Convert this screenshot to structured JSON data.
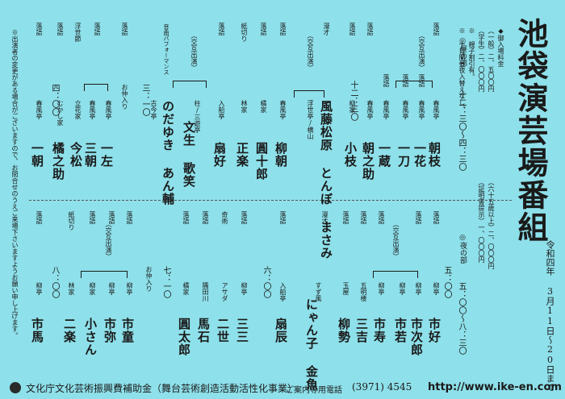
{
  "title": "池袋演芸場番組",
  "period": "令和四年 3月11日～20日まで",
  "admission": {
    "heading": "◆御入場料金",
    "lines": [
      "（一般）二、五〇〇円",
      "（学生）二、〇〇〇円",
      "（青物）二、〇〇〇円",
      "（六十五歳以上）二、〇〇〇円",
      "（小人）一、五〇〇円",
      "（証明書提示）一、〇〇〇円"
    ],
    "notes": [
      "※ 親子割引有。",
      "※ 十日間昼夜入替えなし。"
    ]
  },
  "left_note": "※出演者の変更がある場合がございますので、お問合せのうえご来場下さいますようお願い申し上げます。",
  "day": {
    "label": "◎昼の部",
    "time": "十二：三〇～四：三〇",
    "start": "十二：三〇",
    "intermission": "四：〇〇",
    "acts": [
      {
        "role": "落語",
        "house": "春風亭",
        "name": "朝枝"
      },
      {
        "role": "落語",
        "house": "春風亭",
        "name": "一花",
        "cross": "（交互出演）"
      },
      {
        "role": "落語",
        "house": "春風亭",
        "name": "一刀"
      },
      {
        "role": "落語",
        "house": "春風亭",
        "name": "一蔵"
      },
      {
        "role": "落語",
        "house": "春風亭",
        "name": "朝之助"
      },
      {
        "role": "落語",
        "house": "柳家",
        "name": "小枝"
      },
      {
        "role": "漫才",
        "house": "浮世亭/横山",
        "name": "風藤松原 とんぼ まさみ",
        "cross": "（交互出演）"
      },
      {
        "role": "落語",
        "house": "春風亭",
        "name": "柳朝"
      },
      {
        "role": "落語",
        "house": "橘家",
        "name": "圓十郎"
      },
      {
        "role": "紙切り",
        "house": "林家",
        "name": "正楽"
      },
      {
        "role": "落語",
        "house": "入船亭",
        "name": "扇好"
      },
      {
        "role": "落語",
        "house": "柱/三遊亭",
        "name": "文生 歌笑",
        "cross": "（交互出演）"
      },
      {
        "role": "音曲パフォーマンス",
        "house": "古今亭",
        "name": "のだゆき あん輔"
      },
      {
        "role": "落語",
        "house": "お仲入り",
        "name": ""
      },
      {
        "role": "落語",
        "house": "春風亭",
        "name": "一左"
      },
      {
        "role": "落語",
        "house": "春風亭",
        "name": "三朝"
      },
      {
        "role": "浮世節",
        "house": "立花家",
        "name": "今松"
      },
      {
        "role": "落語",
        "house": "むかし家",
        "name": "橘之助"
      },
      {
        "role": "落語",
        "house": "春風亭",
        "name": "一朝"
      }
    ]
  },
  "night": {
    "label": "◎夜の部",
    "time": "五：〇〇～八：三〇",
    "start": "五：〇〇",
    "intermission": "七：一〇",
    "final": "八：〇〇",
    "acts": [
      {
        "role": "落語",
        "house": "柳亭",
        "name": "市好"
      },
      {
        "role": "落語",
        "house": "柳亭",
        "name": "市次郎",
        "cross": "（交互出演）"
      },
      {
        "role": "落語",
        "house": "柳亭",
        "name": "市若"
      },
      {
        "role": "落語",
        "house": "柳亭",
        "name": "市寿"
      },
      {
        "role": "落語",
        "house": "五明楼",
        "name": "三吉"
      },
      {
        "role": "落語",
        "house": "玉屋",
        "name": "柳勢"
      },
      {
        "role": "漫才",
        "house": "すず風",
        "name": "にゃん子 金魚"
      },
      {
        "role": "落語",
        "house": "入船亭",
        "name": "扇辰"
      },
      {
        "role": "落語",
        "house": "柳亭",
        "name": "三三"
      },
      {
        "role": "奇術",
        "house": "アサダ",
        "name": "二世"
      },
      {
        "role": "落語",
        "house": "隅田川",
        "name": "馬石"
      },
      {
        "role": "落語",
        "house": "橘家",
        "name": "圓太郎",
        "cross": "（交互出演）"
      },
      {
        "role": "落語",
        "house": "お仲入り",
        "name": ""
      },
      {
        "role": "落語",
        "house": "柳亭",
        "name": "市童"
      },
      {
        "role": "落語",
        "house": "柳亭",
        "name": "市弥"
      },
      {
        "role": "落語",
        "house": "柳家",
        "name": "小さん",
        "cross": "（交互出演）"
      },
      {
        "role": "紙切り",
        "house": "林家",
        "name": "二楽"
      },
      {
        "role": "落語",
        "house": "柳亭",
        "name": "市馬"
      }
    ]
  },
  "footer": {
    "sponsor": "文化庁文化芸術振興費補助金（舞台芸術創造活動活性化事業）",
    "phone_label": "ご案内専用電話",
    "phone": "(3971) 4545",
    "url": "http://www.ike-en.com"
  }
}
